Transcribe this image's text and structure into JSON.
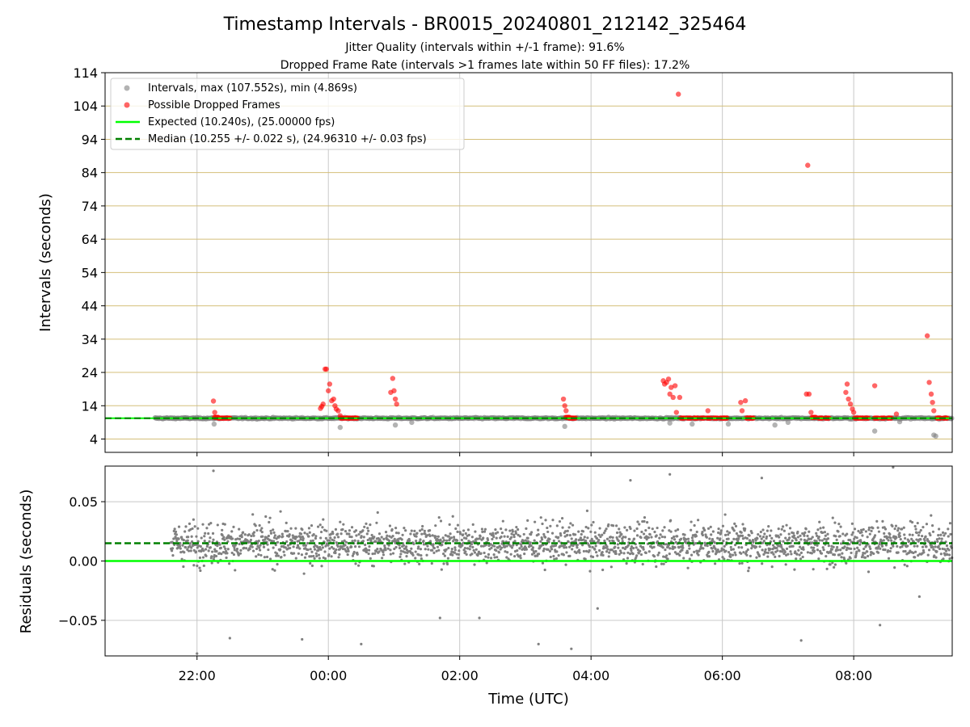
{
  "figure": {
    "title": "Timestamp Intervals - BR0015_20240801_212142_325464",
    "subtitle_1": "Jitter Quality (intervals within +/-1 frame): 91.6%",
    "subtitle_2": "Dropped Frame Rate (intervals >1 frames late within 50 FF files): 17.2%",
    "xlabel": "Time (UTC)"
  },
  "colors": {
    "intervals": "#808080",
    "dropped": "#ff0000",
    "expected": "#00ff00",
    "median": "#008000",
    "hgrid_top": "#d4bf7a",
    "vgrid": "#c8c8c8"
  },
  "chart_data": [
    {
      "type": "scatter",
      "ylabel": "Intervals (seconds)",
      "x_axis": {
        "unit": "hours after 21:00 UTC",
        "range": [
          -0.4,
          12.5
        ],
        "ticks": [
          1,
          3,
          5,
          7,
          9,
          11
        ],
        "tick_labels": [
          "22:00",
          "00:00",
          "02:00",
          "04:00",
          "06:00",
          "08:00"
        ]
      },
      "y_axis": {
        "range": [
          0,
          114
        ],
        "ticks": [
          4,
          14,
          24,
          34,
          44,
          54,
          64,
          74,
          84,
          94,
          104,
          114
        ],
        "tick_labels": [
          "4",
          "14",
          "24",
          "34",
          "44",
          "54",
          "64",
          "74",
          "84",
          "94",
          "104",
          "114"
        ],
        "grid_lines": [
          4,
          14,
          24,
          34,
          44,
          54,
          64,
          74,
          84,
          94,
          104
        ]
      },
      "legend": {
        "placement": "upper left",
        "entries": [
          "Intervals, max (107.552s), min (4.869s)",
          "Possible Dropped Frames",
          "Expected (10.240s), (25.00000 fps)",
          "Median (10.255 +/- 0.022 s), (24.96310 +/- 0.03 fps)"
        ]
      },
      "reference_lines": {
        "expected": 10.24,
        "median": 10.255
      },
      "series": [
        {
          "name": "Intervals, max (107.552s), min (4.869s)",
          "x_range": [
            0.36,
            12.5
          ],
          "baseline": 10.25,
          "x": [
            1.26,
            3.18,
            4.02,
            4.27,
            6.6,
            8.2,
            8.54,
            9.09,
            9.8,
            10.0,
            11.32,
            11.7,
            12.22,
            12.25
          ],
          "y": [
            8.5,
            7.5,
            8.2,
            9.0,
            7.8,
            8.8,
            8.5,
            8.5,
            8.2,
            9.0,
            6.4,
            9.2,
            5.2,
            4.87
          ]
        },
        {
          "name": "Possible Dropped Frames",
          "x": [
            1.25,
            1.27,
            1.3,
            1.36,
            1.42,
            1.48,
            2.88,
            2.9,
            2.92,
            2.95,
            2.97,
            3.0,
            3.02,
            3.05,
            3.08,
            3.1,
            3.12,
            3.15,
            3.18,
            3.22,
            3.3,
            3.35,
            3.42,
            3.95,
            3.98,
            4.0,
            4.02,
            4.04,
            6.58,
            6.6,
            6.62,
            6.65,
            6.7,
            6.74,
            8.1,
            8.12,
            8.15,
            8.18,
            8.2,
            8.22,
            8.25,
            8.3,
            8.35,
            8.33,
            8.28,
            8.4,
            8.5,
            8.6,
            8.7,
            8.78,
            8.8,
            8.9,
            9.0,
            9.05,
            9.28,
            9.3,
            9.35,
            9.4,
            9.45,
            10.28,
            10.3,
            10.32,
            10.35,
            10.4,
            10.5,
            10.6,
            10.88,
            10.9,
            10.92,
            10.95,
            10.98,
            11.0,
            11.05,
            11.12,
            11.2,
            11.65,
            11.32,
            11.35,
            11.45,
            11.55,
            12.12,
            12.15,
            12.18,
            12.2,
            12.22,
            12.3,
            12.4
          ],
          "y": [
            15.4,
            12.0,
            10.5,
            10.3,
            10.3,
            10.3,
            13.2,
            13.8,
            14.5,
            25.0,
            25.0,
            18.5,
            20.5,
            15.5,
            16.0,
            14.0,
            13.0,
            12.5,
            11.0,
            10.3,
            10.3,
            10.3,
            10.3,
            18.0,
            22.2,
            18.5,
            16.0,
            14.5,
            16.0,
            14.0,
            12.5,
            10.5,
            10.3,
            10.3,
            21.5,
            20.5,
            21.0,
            22.0,
            17.5,
            19.5,
            16.5,
            12.0,
            16.5,
            107.55,
            20.0,
            10.3,
            10.3,
            10.3,
            10.3,
            12.5,
            10.3,
            10.3,
            10.3,
            10.3,
            15.0,
            12.5,
            15.5,
            10.3,
            10.3,
            17.5,
            86.2,
            17.5,
            12.0,
            10.5,
            10.3,
            10.3,
            18.0,
            20.5,
            16.0,
            14.5,
            13.0,
            12.0,
            10.3,
            10.3,
            10.3,
            11.5,
            20.0,
            10.3,
            10.3,
            10.3,
            35.0,
            21.0,
            17.5,
            15.0,
            12.5,
            10.3,
            10.3
          ]
        },
        {
          "name": "Expected (10.240s), (25.00000 fps)",
          "y": 10.24
        },
        {
          "name": "Median (10.255 +/- 0.022 s), (24.96310 +/- 0.03 fps)",
          "y": 10.255
        }
      ]
    },
    {
      "type": "scatter",
      "ylabel": "Residuals (seconds)",
      "x_axis": {
        "unit": "hours after 21:00 UTC",
        "range": [
          -0.4,
          12.5
        ],
        "ticks": [
          1,
          3,
          5,
          7,
          9,
          11
        ],
        "tick_labels": [
          "22:00",
          "00:00",
          "02:00",
          "04:00",
          "06:00",
          "08:00"
        ]
      },
      "y_axis": {
        "range": [
          -0.08,
          0.08
        ],
        "ticks": [
          -0.05,
          0.0,
          0.05
        ],
        "tick_labels": [
          "−0.05",
          "0.00",
          "0.05"
        ]
      },
      "reference_lines": {
        "expected": 0.0,
        "median": 0.015
      },
      "series": [
        {
          "name": "Residuals",
          "x_range": [
            0.6,
            12.5
          ],
          "center": 0.015,
          "spread": 0.012,
          "outliers_x": [
            1.0,
            1.25,
            1.5,
            2.6,
            3.5,
            4.7,
            5.3,
            6.2,
            6.7,
            7.1,
            7.6,
            8.2,
            9.6,
            10.2,
            11.4,
            11.6,
            12.0
          ],
          "outliers_y": [
            -0.078,
            0.076,
            -0.065,
            -0.066,
            -0.07,
            -0.048,
            -0.048,
            -0.07,
            -0.074,
            -0.04,
            0.068,
            0.073,
            0.07,
            -0.067,
            -0.054,
            0.079,
            -0.03
          ]
        },
        {
          "name": "Expected",
          "y": 0.0
        },
        {
          "name": "Median",
          "y": 0.015
        }
      ]
    }
  ]
}
